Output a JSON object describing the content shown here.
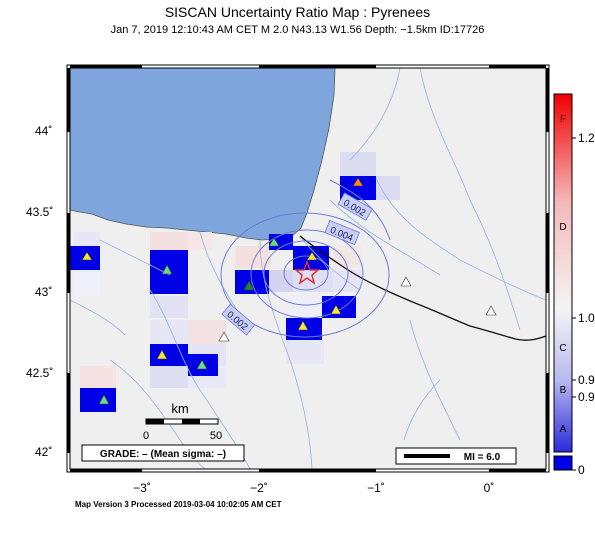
{
  "title": "SISCAN Uncertainty Ratio Map : Pyrenees",
  "subtitle": "Jan  7, 2019 12:10:43 AM CET   M 2.0   N43.13 W1.56   Depth: −1.5km   ID:17726",
  "footer": "Map Version 3 Processed 2019-03-04 10:02:05 AM CET",
  "axes": {
    "lat_labels": [
      "44˚",
      "43.5˚",
      "43˚",
      "42.5˚",
      "42˚"
    ],
    "lon_labels": [
      "−3˚",
      "−2˚",
      "−1˚",
      "0˚"
    ]
  },
  "contours": {
    "labels": [
      "0.002",
      "0.004",
      "0.002"
    ]
  },
  "scalebar": {
    "unit": "km",
    "tick_left": "0",
    "tick_right": "50"
  },
  "grade_box": "GRADE: – (Mean sigma: –)",
  "mi_box": "MI = 6.0",
  "colorbar": {
    "letters": [
      "F",
      "D",
      "C",
      "B",
      "A"
    ],
    "values": [
      "1.2",
      "1.0",
      "0.9",
      "0.9",
      "0"
    ]
  },
  "colors": {
    "ocean": "#7ea6dd",
    "land": "#efefef",
    "river": "#9db8e6",
    "contour": "#6e7bd8",
    "cell_blue": "#0000e6",
    "epicenter": "#e03030"
  }
}
